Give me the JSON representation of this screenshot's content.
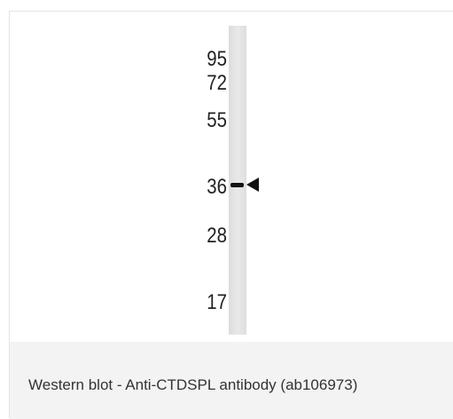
{
  "blot": {
    "markers": [
      "95",
      "72",
      "55",
      "36",
      "28",
      "17"
    ]
  },
  "caption": "Western blot - Anti-CTDSPL antibody (ab106973)"
}
